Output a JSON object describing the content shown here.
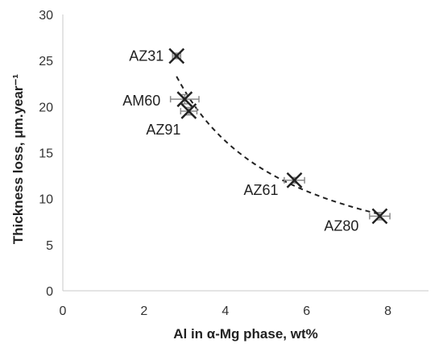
{
  "chart_data": {
    "type": "scatter",
    "xlabel": "Al in α-Mg phase, wt%",
    "ylabel": "Thickness loss, μm.year⁻¹",
    "xlim": [
      0,
      9
    ],
    "ylim": [
      0,
      30
    ],
    "xticks": [
      0,
      2,
      4,
      6,
      8
    ],
    "yticks": [
      0,
      5,
      10,
      15,
      20,
      25,
      30
    ],
    "grid": false,
    "marker": "x",
    "marker_color": "#222222",
    "errorbar_color": "#8a8a8a",
    "trendline": {
      "style": "dashed",
      "color": "#222222"
    },
    "points": [
      {
        "label": "AZ31",
        "x": 2.8,
        "y": 25.5,
        "xerr": 0.1,
        "yerr": 0.3
      },
      {
        "label": "AM60",
        "x": 3.0,
        "y": 20.8,
        "xerr": 0.35,
        "yerr": 0.5
      },
      {
        "label": "AZ91",
        "x": 3.1,
        "y": 19.5,
        "xerr": 0.2,
        "yerr": 0.4
      },
      {
        "label": "AZ61",
        "x": 5.7,
        "y": 12.0,
        "xerr": 0.25,
        "yerr": 0.3
      },
      {
        "label": "AZ80",
        "x": 7.8,
        "y": 8.1,
        "xerr": 0.25,
        "yerr": 0.4
      }
    ]
  }
}
